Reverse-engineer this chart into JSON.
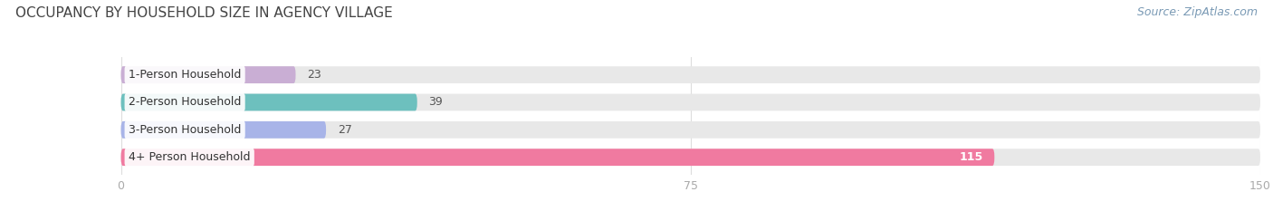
{
  "title": "OCCUPANCY BY HOUSEHOLD SIZE IN AGENCY VILLAGE",
  "source": "Source: ZipAtlas.com",
  "categories": [
    "1-Person Household",
    "2-Person Household",
    "3-Person Household",
    "4+ Person Household"
  ],
  "values": [
    23,
    39,
    27,
    115
  ],
  "bar_colors": [
    "#c9aed4",
    "#6dc0be",
    "#a8b4e8",
    "#f07aa0"
  ],
  "bar_bg_color": "#e8e8e8",
  "xlim": [
    0,
    150
  ],
  "xticks": [
    0,
    75,
    150
  ],
  "title_fontsize": 11,
  "label_fontsize": 9,
  "value_fontsize": 9,
  "source_fontsize": 9,
  "bar_height": 0.62,
  "background_color": "#ffffff",
  "title_color": "#444444",
  "label_color": "#333333",
  "value_color_inside": "#ffffff",
  "value_color_outside": "#555555",
  "source_color": "#7a9ab5",
  "tick_color": "#aaaaaa",
  "grid_color": "#dddddd"
}
